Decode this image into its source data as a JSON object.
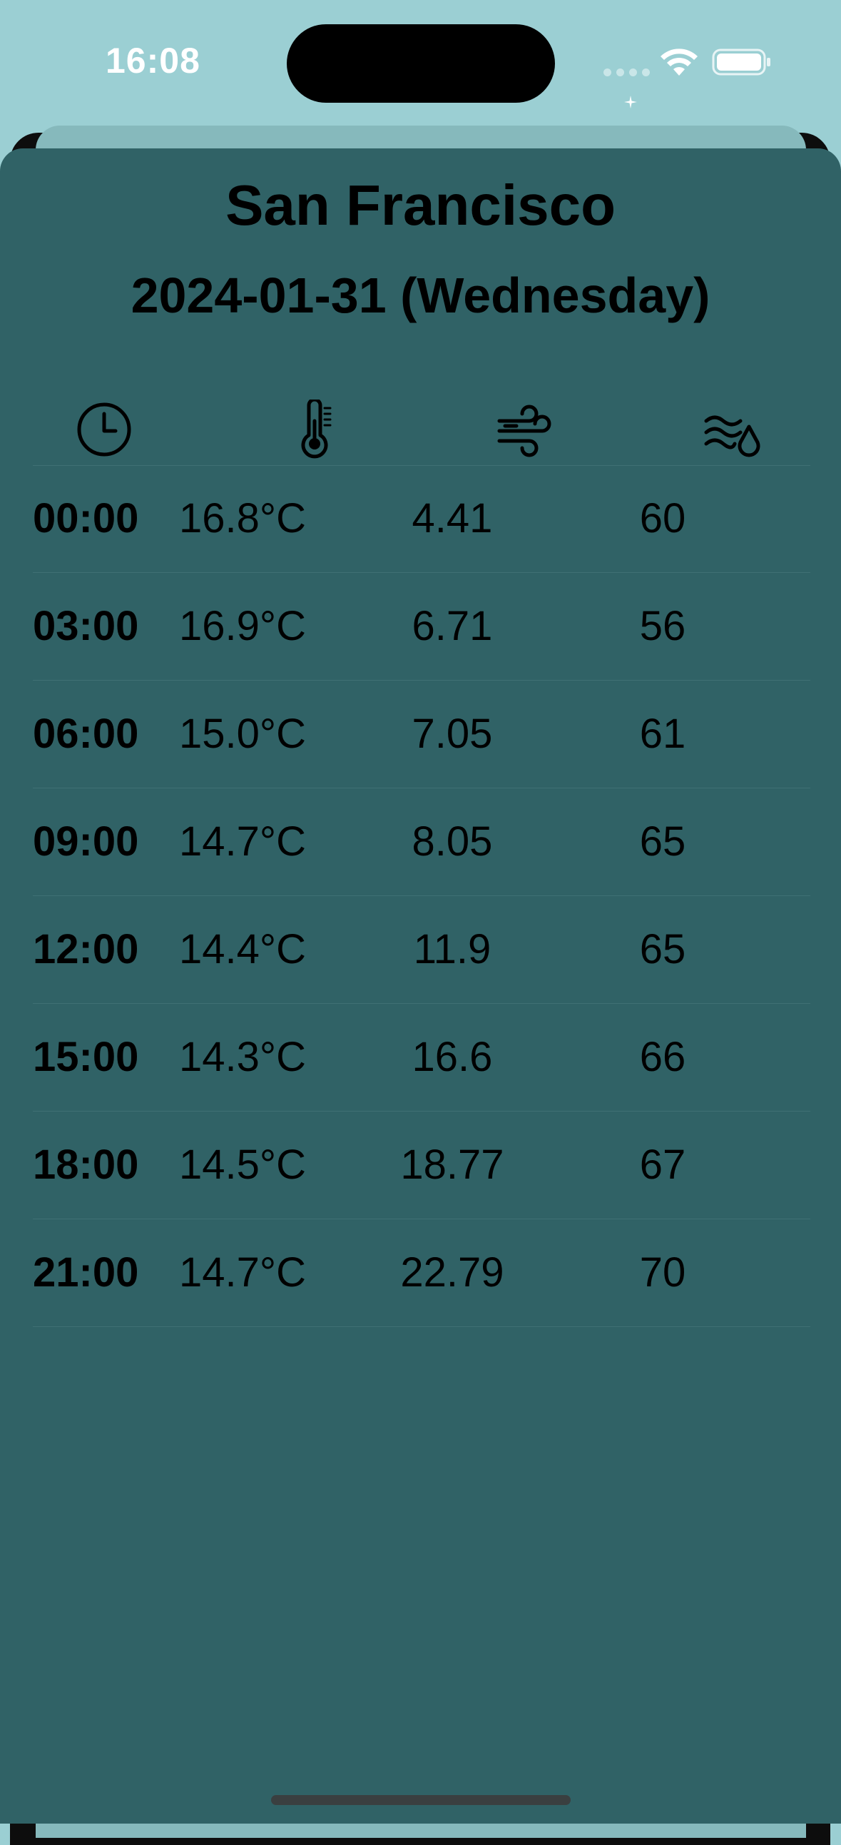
{
  "status_bar": {
    "time": "16:08"
  },
  "header": {
    "city": "San Francisco",
    "date": "2024-01-31 (Wednesday)"
  },
  "table": {
    "columns": [
      {
        "icon": "clock-icon"
      },
      {
        "icon": "thermometer-icon"
      },
      {
        "icon": "wind-icon"
      },
      {
        "icon": "humidity-icon"
      }
    ],
    "rows": [
      {
        "time": "00:00",
        "temperature": "16.8°C",
        "wind": "4.41",
        "humidity": "60"
      },
      {
        "time": "03:00",
        "temperature": "16.9°C",
        "wind": "6.71",
        "humidity": "56"
      },
      {
        "time": "06:00",
        "temperature": "15.0°C",
        "wind": "7.05",
        "humidity": "61"
      },
      {
        "time": "09:00",
        "temperature": "14.7°C",
        "wind": "8.05",
        "humidity": "65"
      },
      {
        "time": "12:00",
        "temperature": "14.4°C",
        "wind": "11.9",
        "humidity": "65"
      },
      {
        "time": "15:00",
        "temperature": "14.3°C",
        "wind": "16.6",
        "humidity": "66"
      },
      {
        "time": "18:00",
        "temperature": "14.5°C",
        "wind": "18.77",
        "humidity": "67"
      },
      {
        "time": "21:00",
        "temperature": "14.7°C",
        "wind": "22.79",
        "humidity": "70"
      }
    ]
  },
  "colors": {
    "background": "#9bcfd3",
    "sheet": "#306266",
    "text": "#000000"
  }
}
